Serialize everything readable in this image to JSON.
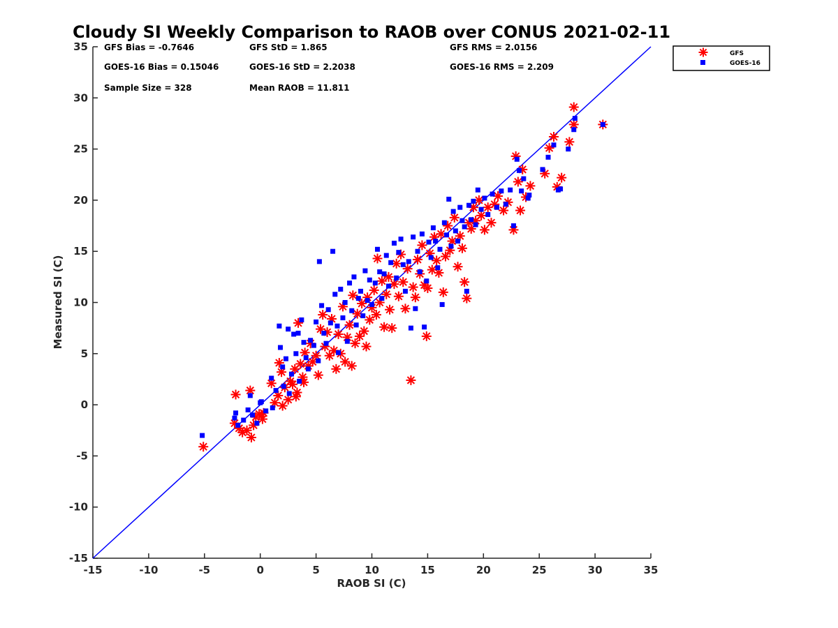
{
  "chart_data": {
    "type": "scatter",
    "title": "Cloudy SI Weekly Comparison to RAOB over CONUS 2021-02-11",
    "xlabel": "RAOB SI (C)",
    "ylabel": "Measured SI (C)",
    "xlim": [
      -15,
      35
    ],
    "ylim": [
      -15,
      35
    ],
    "x_ticks": [
      "-15",
      "-10",
      "-5",
      "0",
      "5",
      "10",
      "15",
      "20",
      "25",
      "30",
      "35"
    ],
    "y_ticks": [
      "-15",
      "-10",
      "-5",
      "0",
      "5",
      "10",
      "15",
      "20",
      "25",
      "30",
      "35"
    ],
    "grid": false,
    "legend_position": "outside top-right",
    "stats": [
      "GFS Bias = -0.7646",
      "GFS StD = 1.865",
      "GFS RMS = 2.0156",
      "GOES-16 Bias = 0.15046",
      "GOES-16 StD = 2.2038",
      "GOES-16 RMS = 2.209",
      "Sample Size = 328",
      "Mean RAOB = 11.811"
    ],
    "reference_line": {
      "x": [
        -15,
        35
      ],
      "y": [
        -15,
        35
      ],
      "color": "#0000ff"
    },
    "series": [
      {
        "name": "GFS",
        "marker": "asterisk",
        "color": "#ff0000",
        "points": [
          [
            -5.1,
            -4.1
          ],
          [
            -2.2,
            1.0
          ],
          [
            -2.3,
            -1.8
          ],
          [
            -1.9,
            -2.3
          ],
          [
            -1.6,
            -2.7
          ],
          [
            -1.2,
            -2.5
          ],
          [
            -0.9,
            1.4
          ],
          [
            -0.8,
            -3.2
          ],
          [
            -0.6,
            -2.0
          ],
          [
            -0.4,
            -1.2
          ],
          [
            -0.1,
            -0.9
          ],
          [
            0.2,
            -1.4
          ],
          [
            0.3,
            -0.8
          ],
          [
            1.0,
            2.1
          ],
          [
            1.3,
            0.2
          ],
          [
            1.6,
            0.9
          ],
          [
            1.7,
            4.1
          ],
          [
            1.9,
            3.2
          ],
          [
            2.0,
            -0.1
          ],
          [
            2.2,
            1.7
          ],
          [
            2.5,
            0.5
          ],
          [
            2.7,
            2.3
          ],
          [
            2.9,
            2.0
          ],
          [
            3.1,
            3.5
          ],
          [
            3.2,
            0.8
          ],
          [
            3.3,
            1.2
          ],
          [
            3.4,
            8.0
          ],
          [
            3.6,
            4.0
          ],
          [
            3.8,
            2.7
          ],
          [
            3.9,
            2.2
          ],
          [
            4.0,
            5.1
          ],
          [
            4.3,
            3.8
          ],
          [
            4.5,
            6.0
          ],
          [
            4.7,
            4.2
          ],
          [
            5.0,
            4.8
          ],
          [
            5.2,
            2.9
          ],
          [
            5.4,
            7.4
          ],
          [
            5.6,
            8.8
          ],
          [
            5.8,
            5.7
          ],
          [
            6.0,
            7.1
          ],
          [
            6.2,
            4.8
          ],
          [
            6.4,
            8.4
          ],
          [
            6.6,
            5.3
          ],
          [
            6.8,
            3.5
          ],
          [
            7.0,
            6.9
          ],
          [
            7.2,
            5.0
          ],
          [
            7.4,
            9.6
          ],
          [
            7.6,
            4.2
          ],
          [
            7.8,
            6.6
          ],
          [
            8.0,
            7.8
          ],
          [
            8.2,
            3.8
          ],
          [
            8.3,
            10.7
          ],
          [
            8.5,
            6.0
          ],
          [
            8.7,
            8.9
          ],
          [
            8.9,
            6.7
          ],
          [
            9.1,
            9.9
          ],
          [
            9.3,
            7.2
          ],
          [
            9.5,
            5.7
          ],
          [
            9.6,
            10.5
          ],
          [
            9.8,
            8.3
          ],
          [
            10.0,
            9.5
          ],
          [
            10.2,
            11.2
          ],
          [
            10.4,
            8.8
          ],
          [
            10.5,
            14.3
          ],
          [
            10.7,
            10.0
          ],
          [
            10.9,
            12.1
          ],
          [
            11.1,
            7.6
          ],
          [
            11.3,
            10.8
          ],
          [
            11.5,
            12.5
          ],
          [
            11.6,
            9.3
          ],
          [
            11.8,
            7.5
          ],
          [
            12.0,
            11.8
          ],
          [
            12.2,
            13.8
          ],
          [
            12.4,
            10.6
          ],
          [
            12.6,
            14.7
          ],
          [
            12.8,
            12.0
          ],
          [
            13.0,
            9.4
          ],
          [
            13.2,
            13.3
          ],
          [
            13.5,
            2.4
          ],
          [
            13.7,
            11.5
          ],
          [
            13.9,
            10.5
          ],
          [
            14.1,
            14.2
          ],
          [
            14.3,
            12.8
          ],
          [
            14.5,
            15.6
          ],
          [
            14.7,
            11.7
          ],
          [
            14.9,
            6.7
          ],
          [
            15.0,
            11.4
          ],
          [
            15.2,
            14.8
          ],
          [
            15.4,
            13.2
          ],
          [
            15.6,
            16.4
          ],
          [
            15.8,
            14.1
          ],
          [
            16.0,
            12.9
          ],
          [
            16.2,
            16.7
          ],
          [
            16.4,
            11.0
          ],
          [
            16.6,
            14.5
          ],
          [
            16.8,
            17.5
          ],
          [
            17.0,
            15.1
          ],
          [
            17.2,
            16.0
          ],
          [
            17.4,
            18.3
          ],
          [
            17.7,
            13.5
          ],
          [
            17.9,
            16.5
          ],
          [
            18.1,
            15.3
          ],
          [
            18.3,
            12.0
          ],
          [
            18.5,
            10.4
          ],
          [
            18.7,
            17.8
          ],
          [
            18.9,
            17.2
          ],
          [
            19.1,
            19.3
          ],
          [
            19.3,
            18.0
          ],
          [
            19.6,
            20.0
          ],
          [
            19.8,
            18.5
          ],
          [
            20.1,
            17.1
          ],
          [
            20.4,
            19.3
          ],
          [
            20.7,
            17.8
          ],
          [
            21.0,
            19.6
          ],
          [
            21.3,
            20.4
          ],
          [
            21.8,
            19.0
          ],
          [
            22.2,
            19.8
          ],
          [
            22.7,
            17.1
          ],
          [
            22.9,
            24.3
          ],
          [
            23.1,
            21.8
          ],
          [
            23.3,
            19.0
          ],
          [
            23.5,
            23.0
          ],
          [
            23.8,
            20.3
          ],
          [
            24.2,
            21.4
          ],
          [
            25.5,
            22.6
          ],
          [
            25.9,
            25.1
          ],
          [
            26.3,
            26.2
          ],
          [
            26.6,
            21.3
          ],
          [
            27.0,
            22.2
          ],
          [
            27.7,
            25.7
          ],
          [
            28.1,
            29.1
          ],
          [
            28.1,
            27.4
          ],
          [
            30.7,
            27.4
          ]
        ]
      },
      {
        "name": "GOES-16",
        "marker": "square",
        "color": "#0000ff",
        "points": [
          [
            -5.2,
            -3.0
          ],
          [
            -2.3,
            -1.3
          ],
          [
            -2.2,
            -0.8
          ],
          [
            -2.0,
            -2.0
          ],
          [
            -1.5,
            -1.5
          ],
          [
            -1.1,
            -0.5
          ],
          [
            -0.9,
            0.9
          ],
          [
            -0.7,
            -1.0
          ],
          [
            -0.3,
            -1.8
          ],
          [
            0.0,
            0.2
          ],
          [
            0.1,
            0.3
          ],
          [
            0.5,
            -0.6
          ],
          [
            1.0,
            2.6
          ],
          [
            1.1,
            -0.3
          ],
          [
            1.4,
            1.4
          ],
          [
            1.7,
            7.7
          ],
          [
            1.8,
            5.6
          ],
          [
            2.0,
            3.7
          ],
          [
            2.1,
            1.8
          ],
          [
            2.3,
            4.5
          ],
          [
            2.5,
            7.4
          ],
          [
            2.6,
            1.1
          ],
          [
            2.8,
            3.0
          ],
          [
            3.0,
            6.9
          ],
          [
            3.2,
            5.0
          ],
          [
            3.4,
            7.0
          ],
          [
            3.5,
            2.3
          ],
          [
            3.7,
            8.3
          ],
          [
            3.9,
            6.1
          ],
          [
            4.1,
            4.6
          ],
          [
            4.3,
            3.5
          ],
          [
            4.5,
            6.3
          ],
          [
            4.8,
            5.8
          ],
          [
            5.0,
            8.1
          ],
          [
            5.2,
            4.3
          ],
          [
            5.3,
            14.0
          ],
          [
            5.5,
            9.7
          ],
          [
            5.7,
            7.0
          ],
          [
            5.9,
            6.0
          ],
          [
            6.1,
            9.3
          ],
          [
            6.3,
            8.0
          ],
          [
            6.5,
            15.0
          ],
          [
            6.7,
            10.8
          ],
          [
            6.9,
            7.7
          ],
          [
            7.0,
            5.1
          ],
          [
            7.2,
            11.3
          ],
          [
            7.4,
            8.5
          ],
          [
            7.6,
            10.0
          ],
          [
            7.8,
            6.2
          ],
          [
            8.0,
            11.9
          ],
          [
            8.2,
            9.2
          ],
          [
            8.4,
            12.5
          ],
          [
            8.6,
            7.8
          ],
          [
            8.8,
            10.4
          ],
          [
            9.0,
            11.1
          ],
          [
            9.2,
            8.7
          ],
          [
            9.4,
            13.1
          ],
          [
            9.6,
            10.2
          ],
          [
            9.8,
            12.2
          ],
          [
            10.0,
            9.8
          ],
          [
            10.3,
            11.9
          ],
          [
            10.5,
            15.2
          ],
          [
            10.7,
            13.0
          ],
          [
            10.9,
            10.4
          ],
          [
            11.1,
            12.8
          ],
          [
            11.3,
            14.6
          ],
          [
            11.5,
            11.6
          ],
          [
            11.7,
            13.9
          ],
          [
            12.0,
            15.8
          ],
          [
            12.2,
            12.4
          ],
          [
            12.4,
            14.9
          ],
          [
            12.6,
            16.2
          ],
          [
            12.8,
            13.7
          ],
          [
            13.0,
            11.1
          ],
          [
            13.3,
            14.0
          ],
          [
            13.5,
            7.5
          ],
          [
            13.7,
            16.4
          ],
          [
            13.9,
            9.4
          ],
          [
            14.1,
            15.0
          ],
          [
            14.3,
            13.0
          ],
          [
            14.5,
            16.7
          ],
          [
            14.7,
            7.6
          ],
          [
            14.9,
            12.1
          ],
          [
            15.1,
            15.9
          ],
          [
            15.3,
            14.4
          ],
          [
            15.5,
            17.3
          ],
          [
            15.7,
            16.0
          ],
          [
            15.9,
            13.4
          ],
          [
            16.1,
            15.2
          ],
          [
            16.3,
            9.8
          ],
          [
            16.5,
            17.8
          ],
          [
            16.7,
            16.6
          ],
          [
            16.9,
            20.1
          ],
          [
            17.1,
            15.5
          ],
          [
            17.3,
            18.9
          ],
          [
            17.5,
            17.0
          ],
          [
            17.7,
            16.0
          ],
          [
            17.9,
            19.3
          ],
          [
            18.1,
            18.0
          ],
          [
            18.3,
            17.4
          ],
          [
            18.5,
            11.1
          ],
          [
            18.7,
            19.5
          ],
          [
            18.9,
            18.1
          ],
          [
            19.1,
            19.9
          ],
          [
            19.3,
            17.6
          ],
          [
            19.5,
            21.0
          ],
          [
            19.8,
            19.1
          ],
          [
            20.1,
            20.2
          ],
          [
            20.4,
            18.6
          ],
          [
            20.8,
            20.6
          ],
          [
            21.2,
            19.3
          ],
          [
            21.6,
            20.9
          ],
          [
            22.0,
            19.6
          ],
          [
            22.4,
            21.0
          ],
          [
            22.7,
            17.5
          ],
          [
            23.0,
            24.0
          ],
          [
            23.2,
            22.9
          ],
          [
            23.4,
            20.9
          ],
          [
            23.6,
            22.1
          ],
          [
            24.0,
            20.2
          ],
          [
            24.1,
            20.5
          ],
          [
            25.3,
            23.0
          ],
          [
            25.8,
            24.2
          ],
          [
            26.3,
            25.4
          ],
          [
            26.7,
            21.0
          ],
          [
            26.9,
            21.1
          ],
          [
            27.6,
            25.0
          ],
          [
            28.1,
            26.9
          ],
          [
            28.2,
            28.0
          ],
          [
            30.7,
            27.4
          ]
        ]
      }
    ]
  }
}
